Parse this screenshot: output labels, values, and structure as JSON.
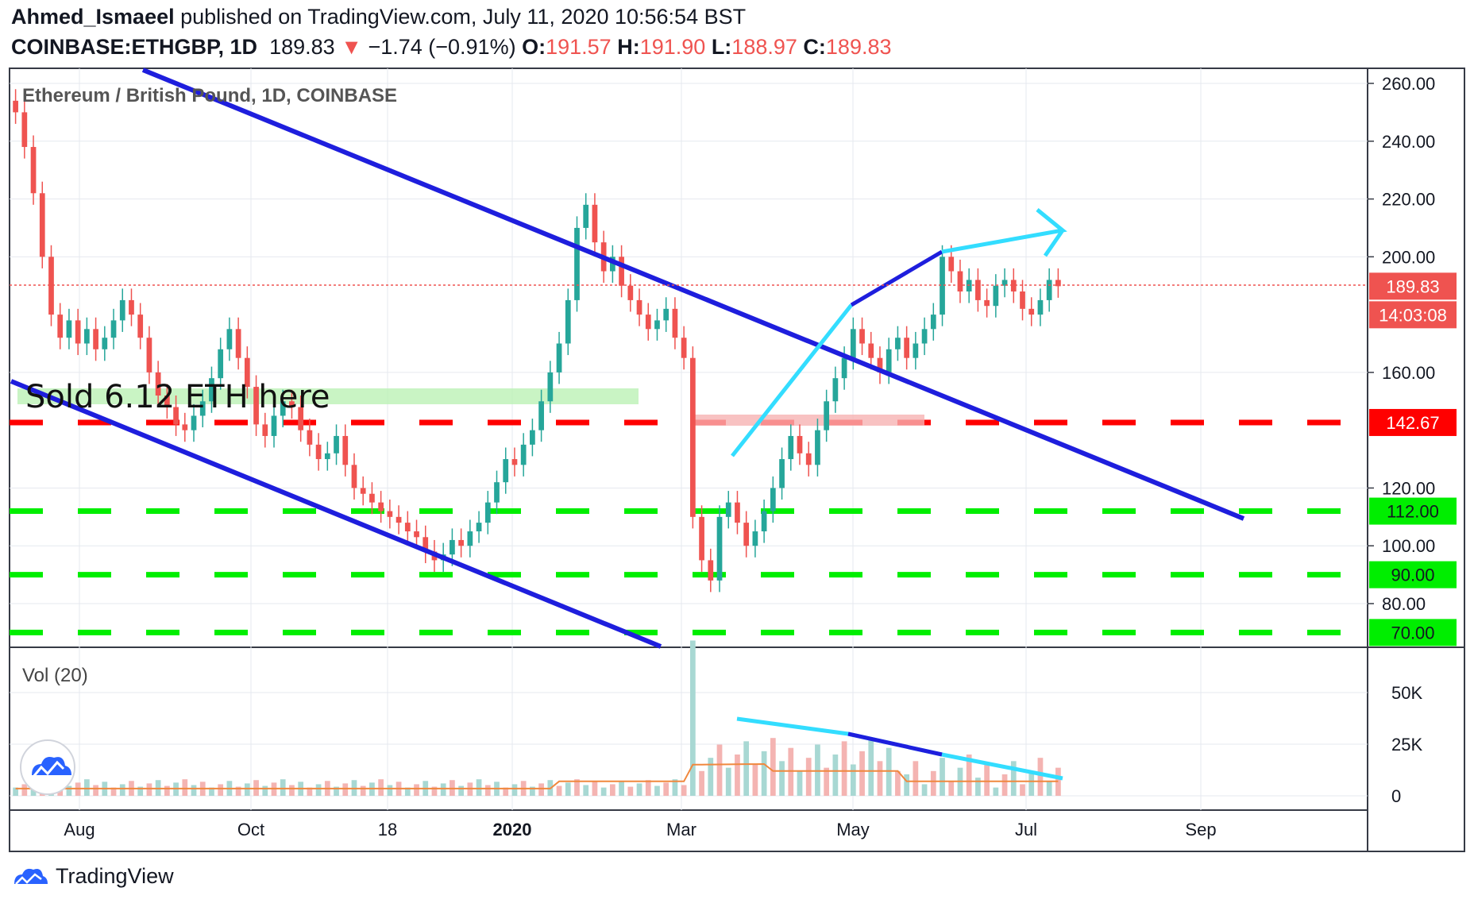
{
  "header": {
    "author": "Ahmed_Ismaeel",
    "published_text": "published on TradingView.com, July 11, 2020 10:56:54 BST",
    "symbol": "COINBASE:ETHGBP, 1D",
    "last": "189.83",
    "change": "−1.74 (−0.91%)",
    "o_label": "O:",
    "o": "191.57",
    "h_label": "H:",
    "h": "191.90",
    "l_label": "L:",
    "l": "188.97",
    "c_label": "C:",
    "c": "189.83"
  },
  "chart_data": {
    "type": "candlestick",
    "title": "Ethereum / British Pound, 1D, COINBASE",
    "yaxis_ticks": [
      "260.00",
      "240.00",
      "220.00",
      "200.00",
      "160.00",
      "120.00",
      "100.00",
      "80.00"
    ],
    "ylim": [
      66,
      265
    ],
    "xaxis_ticks": [
      "Aug",
      "Oct",
      "18",
      "2020",
      "Mar",
      "May",
      "Jul",
      "Sep"
    ],
    "price_close": [
      250,
      238,
      222,
      200,
      180,
      172,
      178,
      170,
      175,
      168,
      172,
      178,
      185,
      180,
      172,
      160,
      152,
      148,
      142,
      140,
      145,
      150,
      158,
      168,
      175,
      165,
      155,
      142,
      138,
      145,
      150,
      148,
      140,
      135,
      130,
      132,
      138,
      128,
      120,
      118,
      115,
      112,
      110,
      108,
      105,
      103,
      98,
      95,
      97,
      102,
      100,
      105,
      108,
      115,
      122,
      130,
      128,
      135,
      140,
      150,
      160,
      170,
      185,
      210,
      218,
      205,
      195,
      200,
      190,
      185,
      180,
      175,
      178,
      182,
      172,
      165,
      110,
      95,
      88,
      110,
      115,
      108,
      100,
      105,
      112,
      120,
      130,
      138,
      132,
      128,
      140,
      150,
      158,
      165,
      175,
      170,
      165,
      160,
      168,
      172,
      165,
      170,
      175,
      180,
      200,
      195,
      188,
      192,
      185,
      183,
      190,
      192,
      188,
      182,
      180,
      185,
      192,
      189.83
    ],
    "price_labels": {
      "last": "189.83",
      "countdown": "14:03:08",
      "level_142": "142.67",
      "level_112": "112.00",
      "level_90": "90.00",
      "level_70": "70.00"
    },
    "levels": [
      {
        "value": 142.67,
        "color": "#ff0000"
      },
      {
        "value": 112.0,
        "color": "#00ee00"
      },
      {
        "value": 90.0,
        "color": "#00ee00"
      },
      {
        "value": 70.0,
        "color": "#00ee00"
      }
    ],
    "annotation": "Sold 6.12 ETH here",
    "volume_title": "Vol (20)",
    "volume_ticks": [
      "50K",
      "25K",
      "0"
    ],
    "volume_ylim": [
      0,
      68000
    ],
    "colors": {
      "up": "#26a69a",
      "down": "#ef5350",
      "channel": "#1e1edd",
      "cyan": "#33ddff",
      "grid": "#e6e9ef"
    }
  },
  "footer": {
    "brand": "TradingView"
  }
}
